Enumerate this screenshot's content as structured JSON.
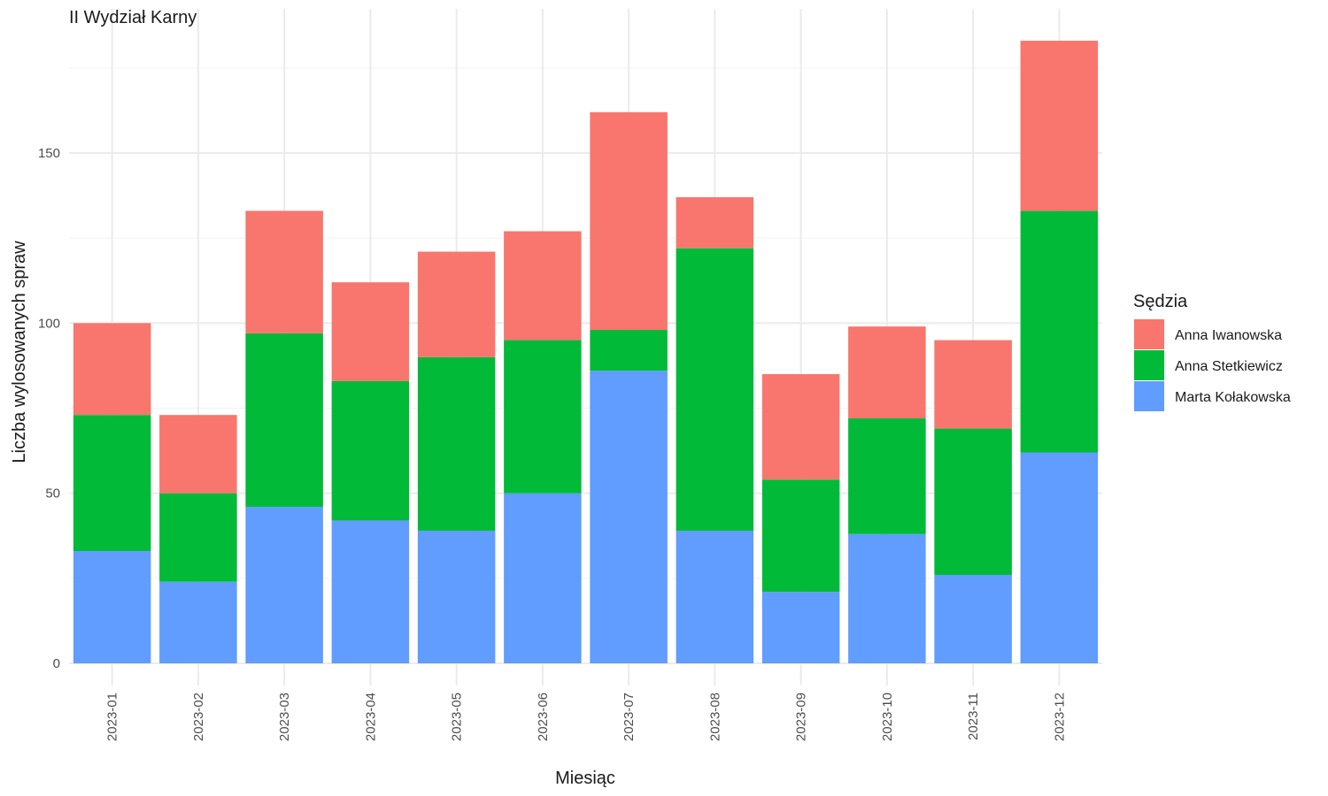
{
  "chart_data": {
    "type": "bar",
    "stacked": true,
    "title": "II Wydział Karny",
    "xlabel": "Miesiąc",
    "ylabel": "Liczba wylosowanych spraw",
    "categories": [
      "2023-01",
      "2023-02",
      "2023-03",
      "2023-04",
      "2023-05",
      "2023-06",
      "2023-07",
      "2023-08",
      "2023-09",
      "2023-10",
      "2023-11",
      "2023-12"
    ],
    "yticks": [
      0,
      50,
      100,
      150
    ],
    "ylim": [
      0,
      190
    ],
    "grid": true,
    "legend": {
      "title": "Sędzia",
      "position": "right"
    },
    "series": [
      {
        "name": "Marta Kołakowska",
        "color": "#619CFF",
        "values": [
          33,
          24,
          46,
          42,
          39,
          50,
          86,
          39,
          21,
          38,
          26,
          62
        ]
      },
      {
        "name": "Anna Stetkiewicz",
        "color": "#00BA38",
        "values": [
          40,
          26,
          51,
          41,
          51,
          45,
          12,
          83,
          33,
          34,
          43,
          71
        ]
      },
      {
        "name": "Anna Iwanowska",
        "color": "#F8766D",
        "values": [
          27,
          23,
          36,
          29,
          31,
          32,
          64,
          15,
          31,
          27,
          26,
          50
        ]
      }
    ],
    "legend_order": [
      "Anna Iwanowska",
      "Anna Stetkiewicz",
      "Marta Kołakowska"
    ]
  }
}
